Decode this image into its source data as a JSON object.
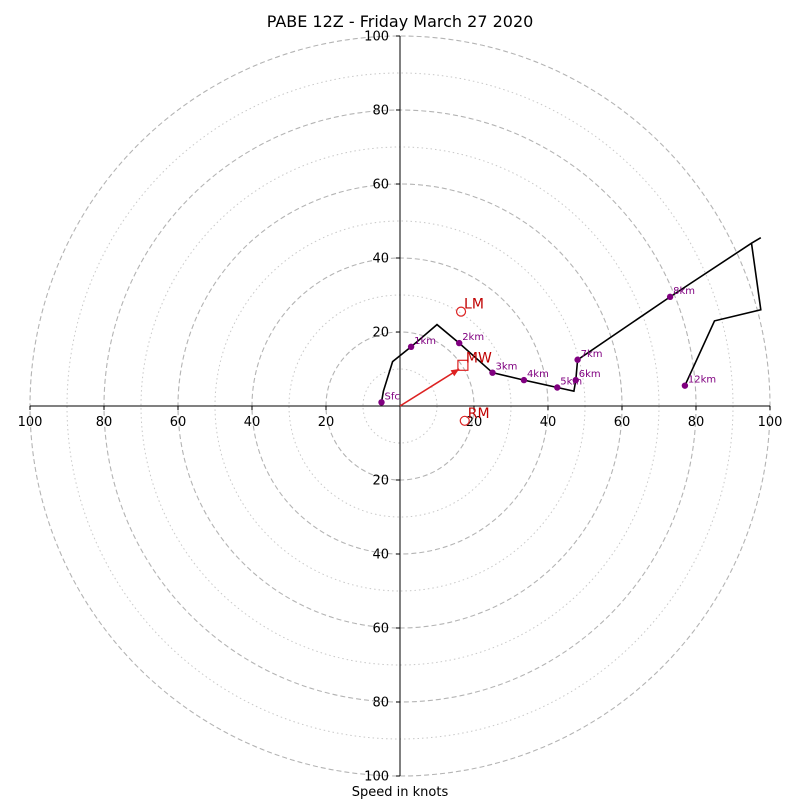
{
  "chart_data": {
    "type": "line",
    "title": "PABE 12Z - Friday March 27 2020",
    "xlabel": "Speed in knots",
    "axis_range": [
      -100,
      100
    ],
    "ring_dashed": [
      20,
      40,
      60,
      80,
      100
    ],
    "ring_dotted": [
      10,
      30,
      50,
      70,
      90
    ],
    "tick_labels": {
      "x": [
        {
          "value": -100,
          "label": "100"
        },
        {
          "value": -80,
          "label": "80"
        },
        {
          "value": -60,
          "label": "60"
        },
        {
          "value": -40,
          "label": "40"
        },
        {
          "value": -20,
          "label": "20"
        },
        {
          "value": 20,
          "label": "20"
        },
        {
          "value": 40,
          "label": "40"
        },
        {
          "value": 60,
          "label": "60"
        },
        {
          "value": 80,
          "label": "80"
        },
        {
          "value": 100,
          "label": "100"
        }
      ],
      "y": [
        {
          "value": 100,
          "label": "100"
        },
        {
          "value": 80,
          "label": "80"
        },
        {
          "value": 60,
          "label": "60"
        },
        {
          "value": 40,
          "label": "40"
        },
        {
          "value": 20,
          "label": "20"
        },
        {
          "value": -20,
          "label": "20"
        },
        {
          "value": -40,
          "label": "40"
        },
        {
          "value": -60,
          "label": "60"
        },
        {
          "value": -80,
          "label": "80"
        },
        {
          "value": -100,
          "label": "100"
        }
      ]
    },
    "hodograph": {
      "color": "#000000",
      "points": [
        {
          "u": -5,
          "v": 1
        },
        {
          "u": -4.5,
          "v": 4
        },
        {
          "u": -2,
          "v": 12
        },
        {
          "u": 3,
          "v": 16
        },
        {
          "u": 10,
          "v": 22
        },
        {
          "u": 16,
          "v": 17
        },
        {
          "u": 25,
          "v": 9
        },
        {
          "u": 33.5,
          "v": 7
        },
        {
          "u": 42.5,
          "v": 5
        },
        {
          "u": 47,
          "v": 4
        },
        {
          "u": 47.5,
          "v": 7
        },
        {
          "u": 48,
          "v": 12.5
        },
        {
          "u": 73,
          "v": 29.5
        },
        {
          "u": 95,
          "v": 44
        },
        {
          "u": 97.5,
          "v": 45.5
        },
        {
          "u": 95,
          "v": 44
        },
        {
          "u": 97.5,
          "v": 26
        },
        {
          "u": 85,
          "v": 23
        },
        {
          "u": 77,
          "v": 5.5
        }
      ]
    },
    "height_markers": {
      "color": "#800080",
      "points": [
        {
          "label": "Sfc",
          "u": -5,
          "v": 1
        },
        {
          "label": "1km",
          "u": 3,
          "v": 16
        },
        {
          "label": "2km",
          "u": 16,
          "v": 17
        },
        {
          "label": "3km",
          "u": 25,
          "v": 9
        },
        {
          "label": "4km",
          "u": 33.5,
          "v": 7
        },
        {
          "label": "5km",
          "u": 42.5,
          "v": 5
        },
        {
          "label": "6km",
          "u": 47.5,
          "v": 7
        },
        {
          "label": "7km",
          "u": 48,
          "v": 12.5
        },
        {
          "label": "8km",
          "u": 73,
          "v": 29.5
        },
        {
          "label": "12km",
          "u": 77,
          "v": 5.5
        }
      ]
    },
    "motion": {
      "color": "#dd2222",
      "mean_wind_vector": {
        "u": 16,
        "v": 10
      },
      "points": [
        {
          "label": "LM",
          "u": 16.5,
          "v": 25.5,
          "marker": "circle"
        },
        {
          "label": "MW",
          "u": 17,
          "v": 11,
          "marker": "square"
        },
        {
          "label": "RM",
          "u": 17.5,
          "v": -4,
          "marker": "circle"
        }
      ]
    }
  }
}
